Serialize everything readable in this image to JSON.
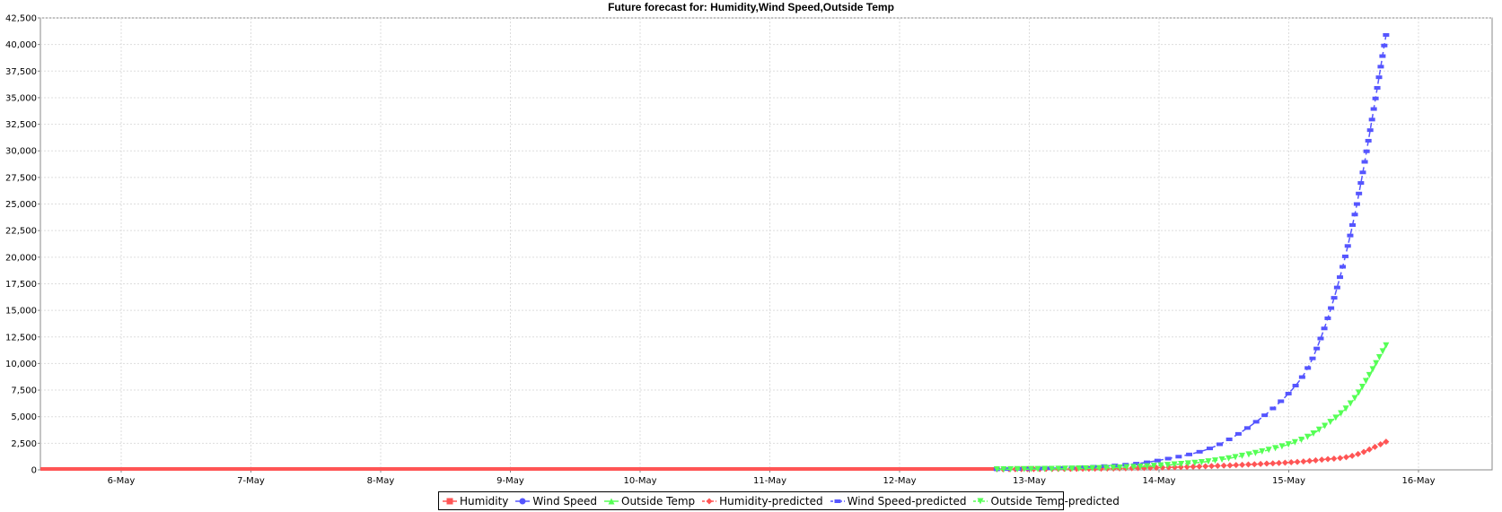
{
  "chart_data": {
    "type": "line",
    "title": "Future forecast for: Humidity,Wind Speed,Outside Temp",
    "xlabel": "",
    "ylabel": "",
    "x_axis": {
      "type": "date",
      "tick_labels": [
        "6-May",
        "7-May",
        "8-May",
        "9-May",
        "10-May",
        "11-May",
        "12-May",
        "13-May",
        "14-May",
        "15-May",
        "16-May"
      ]
    },
    "y_axis": {
      "min": 0,
      "max": 42500,
      "tick_step": 2500,
      "tick_labels": [
        "0",
        "2,500",
        "5,000",
        "7,500",
        "10,000",
        "12,500",
        "15,000",
        "17,500",
        "20,000",
        "22,500",
        "25,000",
        "27,500",
        "30,000",
        "32,500",
        "35,000",
        "37,500",
        "40,000",
        "42,500"
      ]
    },
    "grid": true,
    "legend_position": "bottom",
    "series": [
      {
        "name": "Humidity",
        "color": "#ff5555",
        "marker": "square",
        "dashed": false,
        "points": [
          [
            "5-May",
            80
          ],
          [
            "6-May",
            80
          ],
          [
            "7-May",
            80
          ],
          [
            "8-May",
            80
          ],
          [
            "9-May",
            80
          ],
          [
            "10-May",
            80
          ],
          [
            "11-May",
            80
          ],
          [
            "12-May",
            80
          ],
          [
            "12-May 18:00",
            80
          ]
        ]
      },
      {
        "name": "Wind Speed",
        "color": "#5555ff",
        "marker": "circle",
        "dashed": false,
        "points": []
      },
      {
        "name": "Outside Temp",
        "color": "#55ff55",
        "marker": "triangle-up",
        "dashed": false,
        "points": []
      },
      {
        "name": "Humidity-predicted",
        "color": "#ff5555",
        "marker": "diamond",
        "dashed": true,
        "points": [
          [
            "12-May 18:00",
            60
          ],
          [
            "13-May 12:00",
            110
          ],
          [
            "14-May 00:00",
            210
          ],
          [
            "14-May 12:00",
            400
          ],
          [
            "15-May 00:00",
            700
          ],
          [
            "15-May 06:00",
            950
          ],
          [
            "15-May 12:00",
            1350
          ],
          [
            "15-May 18:00",
            2650
          ]
        ]
      },
      {
        "name": "Wind Speed-predicted",
        "color": "#5555ff",
        "marker": "rect",
        "dashed": true,
        "points": [
          [
            "12-May 18:00",
            50
          ],
          [
            "13-May 12:00",
            300
          ],
          [
            "14-May 00:00",
            900
          ],
          [
            "14-May 12:00",
            2600
          ],
          [
            "15-May 00:00",
            7200
          ],
          [
            "15-May 06:00",
            12500
          ],
          [
            "15-May 12:00",
            23500
          ],
          [
            "15-May 18:00",
            40900
          ]
        ]
      },
      {
        "name": "Outside Temp-predicted",
        "color": "#55ff55",
        "marker": "triangle-down",
        "dashed": true,
        "points": [
          [
            "12-May 18:00",
            40
          ],
          [
            "13-May 12:00",
            150
          ],
          [
            "14-May 00:00",
            400
          ],
          [
            "14-May 12:00",
            1000
          ],
          [
            "15-May 00:00",
            2400
          ],
          [
            "15-May 06:00",
            3900
          ],
          [
            "15-May 12:00",
            6600
          ],
          [
            "15-May 18:00",
            11700
          ]
        ]
      }
    ]
  }
}
